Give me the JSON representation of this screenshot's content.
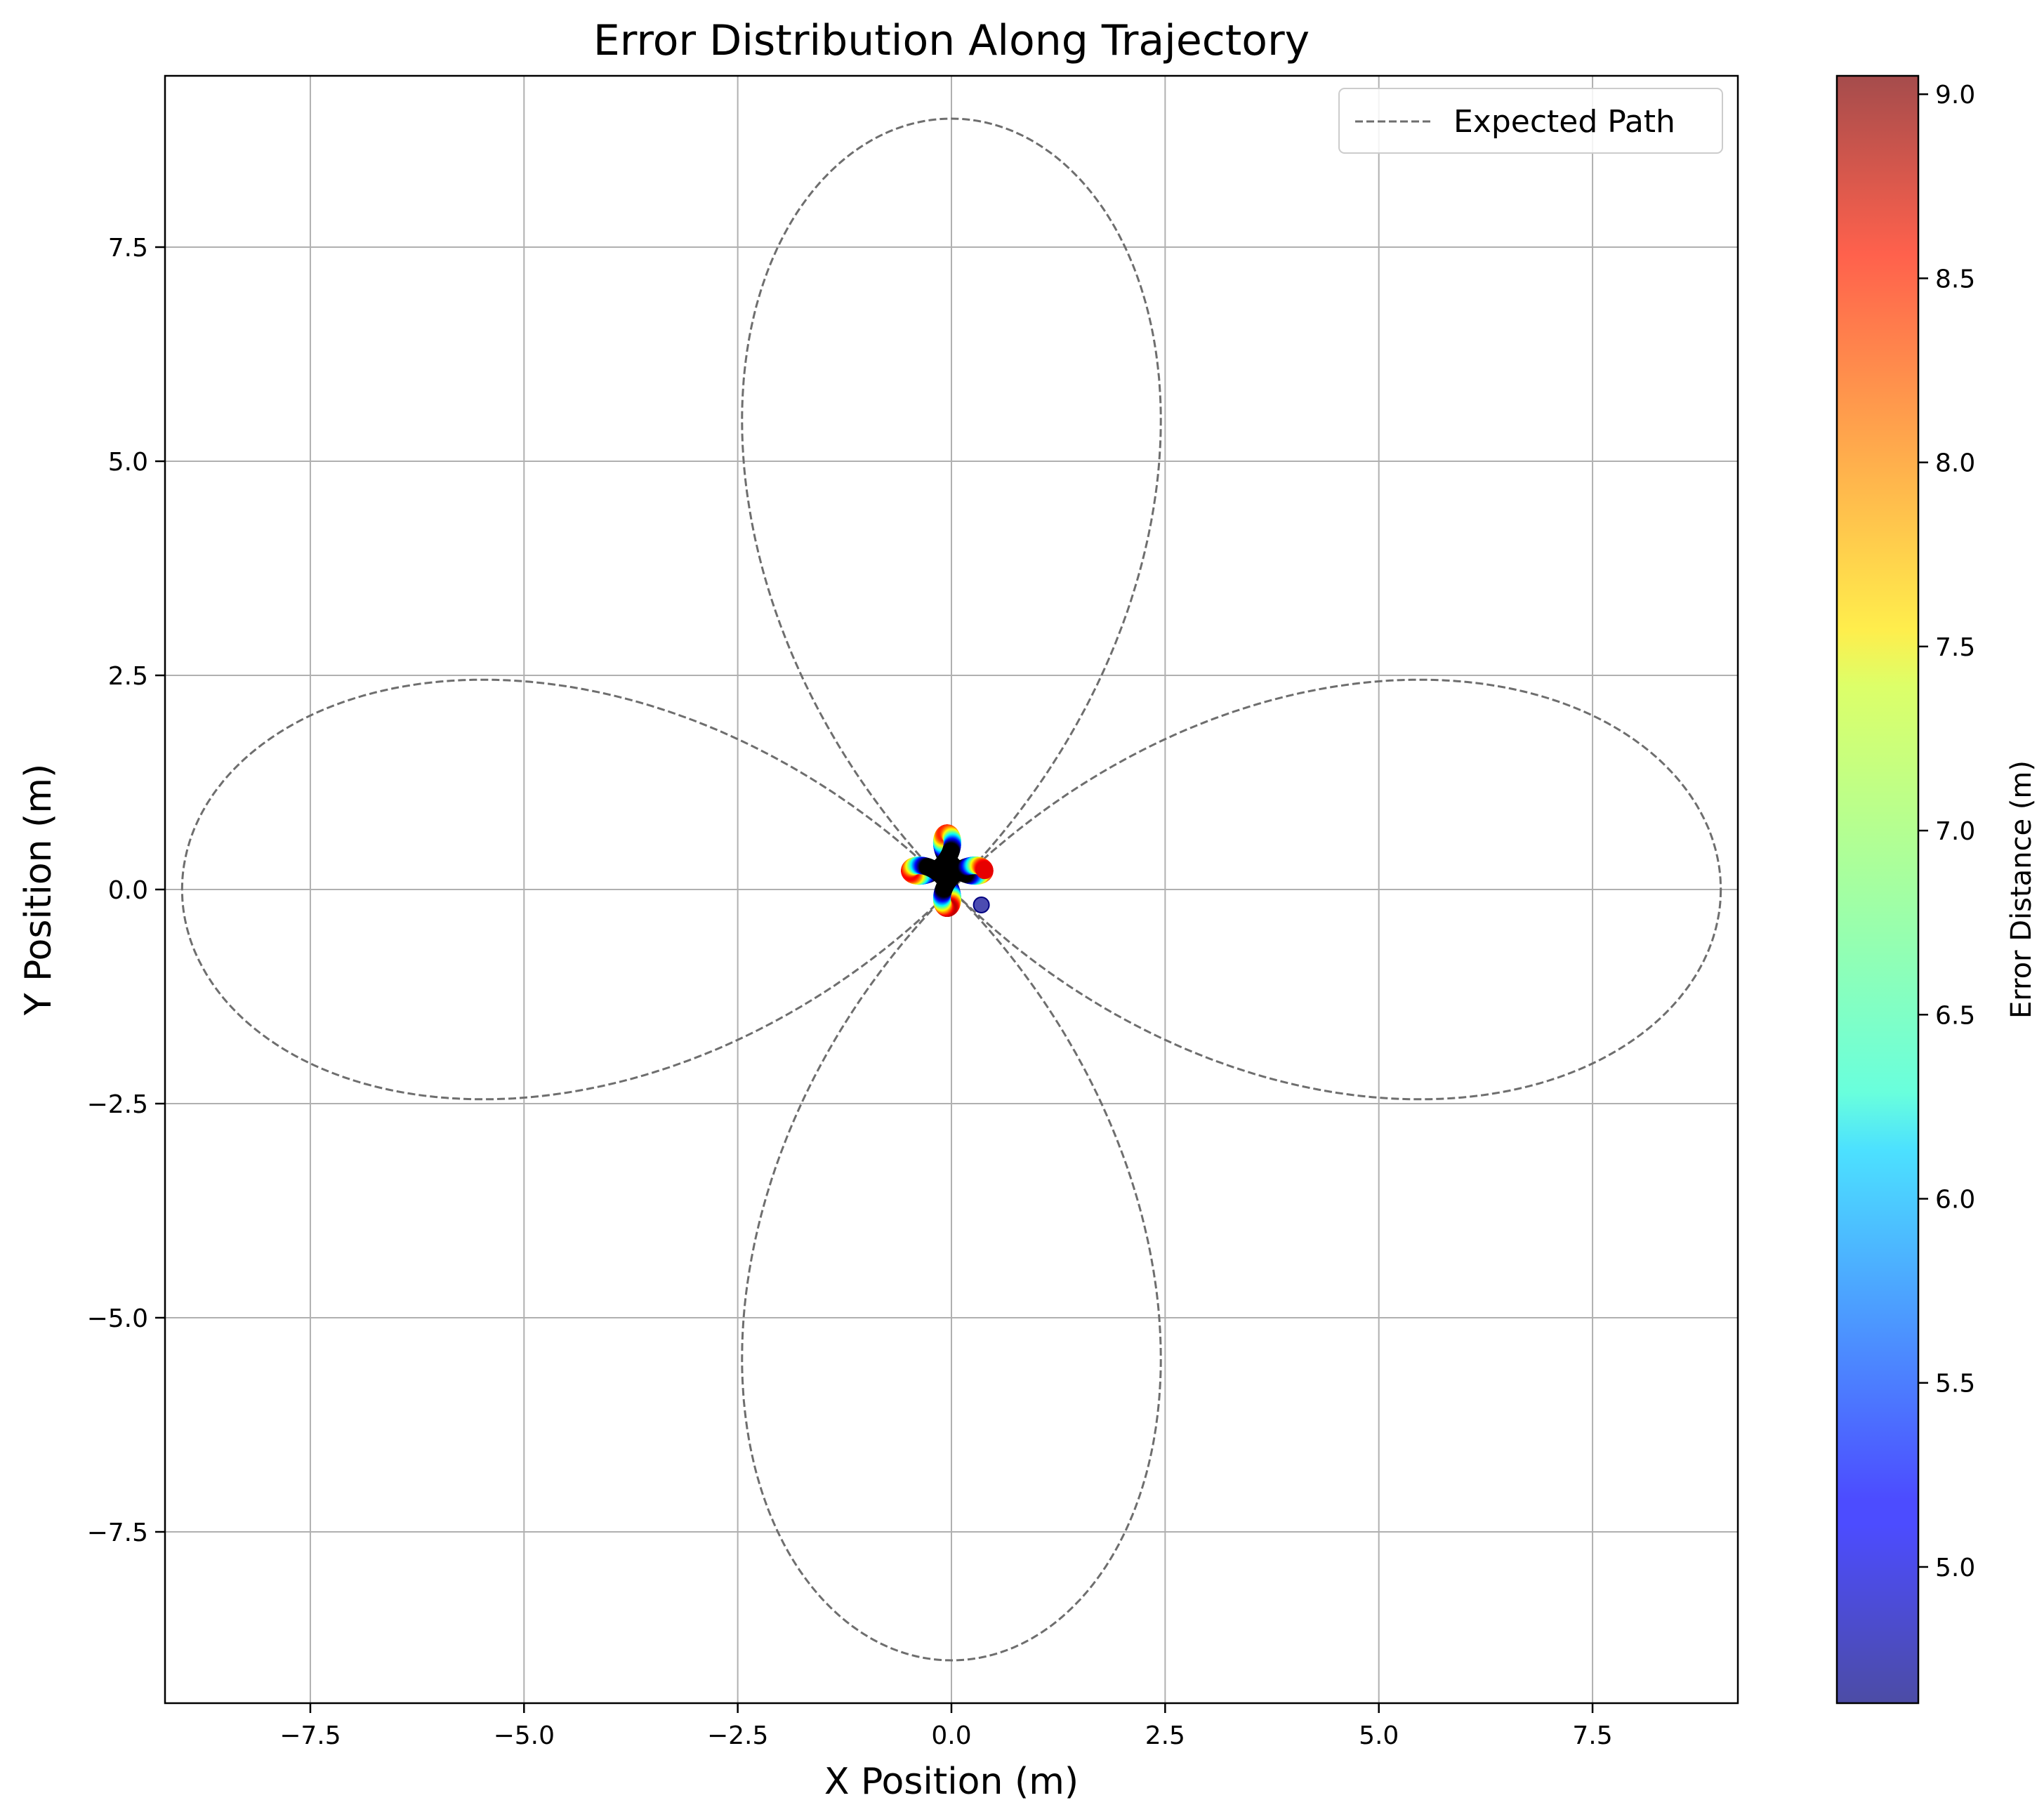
{
  "chart_data": {
    "type": "scatter",
    "title": "Error Distribution Along Trajectory",
    "xlabel": "X Position (m)",
    "ylabel": "Y Position (m)",
    "xlim": [
      -9.2,
      9.2
    ],
    "ylim": [
      -9.5,
      9.5
    ],
    "xticks": [
      -7.5,
      -5.0,
      -2.5,
      0.0,
      2.5,
      5.0,
      7.5
    ],
    "xtick_labels": [
      "−7.5",
      "−5.0",
      "−2.5",
      "0.0",
      "2.5",
      "5.0",
      "7.5"
    ],
    "yticks": [
      -7.5,
      -5.0,
      -2.5,
      0.0,
      2.5,
      5.0,
      7.5
    ],
    "ytick_labels": [
      "−7.5",
      "−5.0",
      "−2.5",
      "0.0",
      "2.5",
      "5.0",
      "7.5"
    ],
    "grid": true,
    "legend": {
      "position": "upper-right",
      "entries": [
        "Expected Path"
      ]
    },
    "colors": {
      "expected_path": "#6e6e6e",
      "grid": "#b0b0b0"
    },
    "expected_path": {
      "name": "Expected Path",
      "style": "dashed",
      "equation": {
        "R": 6,
        "r": 1.5,
        "d": 4.5
      }
    },
    "actual_path": {
      "style": "scatter",
      "equation": {
        "R": 0.35,
        "r": 0.0875,
        "d": 0.175
      },
      "point_count": 500,
      "color_by": "error_distance",
      "colormap": "jet",
      "alpha": 0.7,
      "outlier_point": {
        "x": 0.35,
        "y": -0.18,
        "error": 4.7
      }
    },
    "colorbar": {
      "label": "Error Distance (m)",
      "range": [
        4.63,
        9.05
      ],
      "ticks": [
        5.0,
        5.5,
        6.0,
        6.5,
        7.0,
        7.5,
        8.0,
        8.5,
        9.0
      ],
      "tick_labels": [
        "5.0",
        "5.5",
        "6.0",
        "6.5",
        "7.0",
        "7.5",
        "8.0",
        "8.5",
        "9.0"
      ]
    }
  }
}
